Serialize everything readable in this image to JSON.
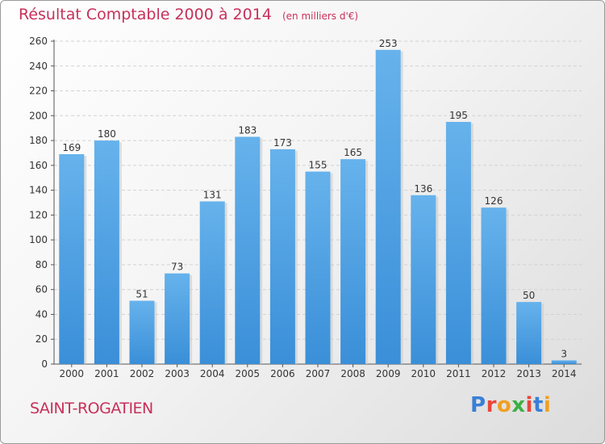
{
  "title": "Résultat Comptable 2000 à 2014",
  "subtitle": "(en milliers d'€)",
  "place": "SAINT-ROGATIEN",
  "logo": {
    "text": "Proxiti",
    "letter_colors": [
      "#3a7fd6",
      "#e8463a",
      "#f0a020",
      "#3cb043",
      "#e8463a",
      "#3a7fd6",
      "#f0a020"
    ]
  },
  "colors": {
    "bar": "#3a8fd8",
    "bar_light": "#66b2ec",
    "title": "#c8305a"
  },
  "chart_data": {
    "type": "bar",
    "categories": [
      "2000",
      "2001",
      "2002",
      "2003",
      "2004",
      "2005",
      "2006",
      "2007",
      "2008",
      "2009",
      "2010",
      "2011",
      "2012",
      "2013",
      "2014"
    ],
    "values": [
      169,
      180,
      51,
      73,
      131,
      183,
      173,
      155,
      165,
      253,
      136,
      195,
      126,
      50,
      3
    ],
    "title": "Résultat Comptable 2000 à 2014",
    "xlabel": "",
    "ylabel": "",
    "ylim": [
      0,
      260
    ],
    "yticks": [
      0,
      20,
      40,
      60,
      80,
      100,
      120,
      140,
      160,
      180,
      200,
      220,
      240,
      260
    ],
    "grid": true,
    "data_labels": true
  }
}
